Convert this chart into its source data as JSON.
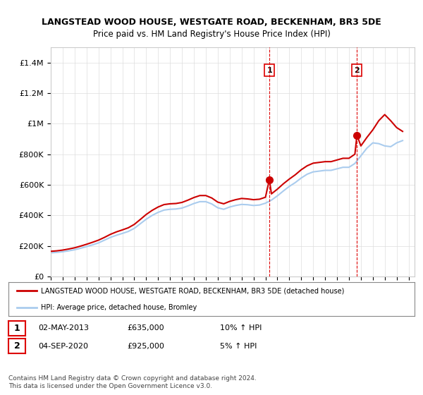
{
  "title": "LANGSTEAD WOOD HOUSE, WESTGATE ROAD, BECKENHAM, BR3 5DE",
  "subtitle": "Price paid vs. HM Land Registry's House Price Index (HPI)",
  "legend_line1": "LANGSTEAD WOOD HOUSE, WESTGATE ROAD, BECKENHAM, BR3 5DE (detached house)",
  "legend_line2": "HPI: Average price, detached house, Bromley",
  "footer": "Contains HM Land Registry data © Crown copyright and database right 2024.\nThis data is licensed under the Open Government Licence v3.0.",
  "transaction1_label": "1",
  "transaction1_date": "02-MAY-2013",
  "transaction1_price": "£635,000",
  "transaction1_hpi": "10% ↑ HPI",
  "transaction2_label": "2",
  "transaction2_date": "04-SEP-2020",
  "transaction2_price": "£925,000",
  "transaction2_hpi": "5% ↑ HPI",
  "red_color": "#cc0000",
  "blue_color": "#aaccee",
  "vline_color": "#dd0000",
  "background_color": "#ffffff",
  "grid_color": "#dddddd",
  "ylim": [
    0,
    1500000
  ],
  "yticks": [
    0,
    200000,
    400000,
    600000,
    800000,
    1000000,
    1200000,
    1400000
  ],
  "ytick_labels": [
    "£0",
    "£200K",
    "£400K",
    "£600K",
    "£800K",
    "£1M",
    "£1.2M",
    "£1.4M"
  ],
  "xmin": 1995.0,
  "xmax": 2025.5,
  "transaction1_x": 2013.33,
  "transaction1_y": 635000,
  "transaction2_x": 2020.67,
  "transaction2_y": 925000,
  "hpi_x": [
    1995.0,
    1995.5,
    1996.0,
    1996.5,
    1997.0,
    1997.5,
    1998.0,
    1998.5,
    1999.0,
    1999.5,
    2000.0,
    2000.5,
    2001.0,
    2001.5,
    2002.0,
    2002.5,
    2003.0,
    2003.5,
    2004.0,
    2004.5,
    2005.0,
    2005.5,
    2006.0,
    2006.5,
    2007.0,
    2007.5,
    2008.0,
    2008.5,
    2009.0,
    2009.5,
    2010.0,
    2010.5,
    2011.0,
    2011.5,
    2012.0,
    2012.5,
    2013.0,
    2013.5,
    2014.0,
    2014.5,
    2015.0,
    2015.5,
    2016.0,
    2016.5,
    2017.0,
    2017.5,
    2018.0,
    2018.5,
    2019.0,
    2019.5,
    2020.0,
    2020.5,
    2021.0,
    2021.5,
    2022.0,
    2022.5,
    2023.0,
    2023.5,
    2024.0,
    2024.5
  ],
  "hpi_y": [
    155000,
    158000,
    162000,
    168000,
    175000,
    185000,
    196000,
    207000,
    220000,
    238000,
    256000,
    270000,
    282000,
    295000,
    315000,
    345000,
    375000,
    400000,
    420000,
    435000,
    440000,
    442000,
    448000,
    462000,
    478000,
    490000,
    490000,
    475000,
    450000,
    440000,
    455000,
    465000,
    472000,
    470000,
    465000,
    468000,
    480000,
    500000,
    528000,
    560000,
    590000,
    615000,
    645000,
    670000,
    685000,
    690000,
    695000,
    695000,
    705000,
    715000,
    715000,
    740000,
    790000,
    840000,
    875000,
    870000,
    855000,
    850000,
    875000,
    890000
  ],
  "red_x": [
    1995.0,
    1995.5,
    1996.0,
    1996.5,
    1997.0,
    1997.5,
    1998.0,
    1998.5,
    1999.0,
    1999.5,
    2000.0,
    2000.5,
    2001.0,
    2001.5,
    2002.0,
    2002.5,
    2003.0,
    2003.5,
    2004.0,
    2004.5,
    2005.0,
    2005.5,
    2006.0,
    2006.5,
    2007.0,
    2007.5,
    2008.0,
    2008.5,
    2009.0,
    2009.5,
    2010.0,
    2010.5,
    2011.0,
    2011.5,
    2012.0,
    2012.5,
    2013.0,
    2013.33,
    2013.5,
    2014.0,
    2014.5,
    2015.0,
    2015.5,
    2016.0,
    2016.5,
    2017.0,
    2017.5,
    2018.0,
    2018.5,
    2019.0,
    2019.5,
    2020.0,
    2020.5,
    2020.67,
    2021.0,
    2021.5,
    2022.0,
    2022.5,
    2023.0,
    2023.5,
    2024.0,
    2024.5
  ],
  "red_y": [
    165000,
    168000,
    173000,
    180000,
    188000,
    199000,
    211000,
    224000,
    238000,
    256000,
    276000,
    292000,
    305000,
    319000,
    341000,
    373000,
    406000,
    433000,
    455000,
    471000,
    476000,
    478000,
    485000,
    500000,
    517000,
    530000,
    530000,
    514000,
    487000,
    476000,
    492000,
    503000,
    511000,
    508000,
    503000,
    506000,
    519000,
    635000,
    541000,
    572000,
    607000,
    638000,
    666000,
    699000,
    725000,
    742000,
    747000,
    752000,
    752000,
    763000,
    774000,
    774000,
    801000,
    925000,
    855000,
    910000,
    960000,
    1020000,
    1060000,
    1020000,
    975000,
    950000
  ]
}
